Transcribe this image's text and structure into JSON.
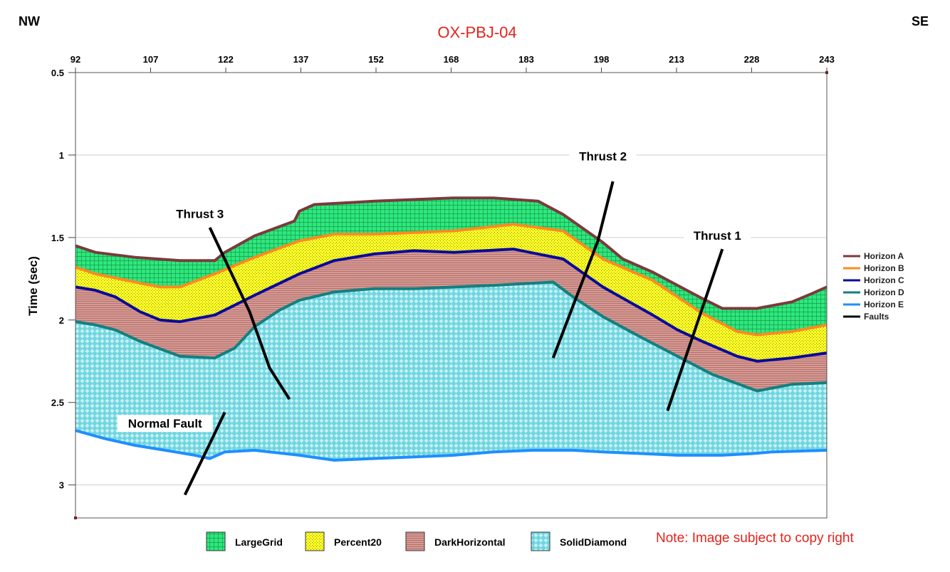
{
  "corners": {
    "left": "NW",
    "right": "SE"
  },
  "note": "Note: Image subject to copy right",
  "chart_data": {
    "type": "area",
    "title": "OX-PBJ-04",
    "ylabel": "Time (sec)",
    "xlabel": "",
    "xlim": [
      92,
      243
    ],
    "ylim": [
      0.5,
      3.2
    ],
    "x_ticks": [
      "92",
      "107",
      "122",
      "137",
      "152",
      "168",
      "183",
      "198",
      "213",
      "228",
      "243"
    ],
    "y_ticks": [
      0.5,
      1,
      1.5,
      2,
      2.5,
      3
    ],
    "y_tick_labels": [
      "0.5",
      "1",
      "1.5",
      "2",
      "2.5",
      "3"
    ],
    "grid": true,
    "colors": {
      "title": "#e3231b",
      "horizon_a": "#7a3b3b",
      "horizon_b": "#ff8a1f",
      "horizon_c": "#0a0a9a",
      "horizon_d": "#138080",
      "horizon_e": "#1e8fff",
      "faults": "#000000",
      "fill_grid": "#2ee87c",
      "fill_percent": "#ffff2a",
      "fill_darkhorizontal": "#d39a94",
      "fill_soliddiamond": "#6fd6e0"
    },
    "series": [
      {
        "name": "Horizon A",
        "key": "horizon_a",
        "x": [
          92,
          96,
          104,
          113,
          120,
          122,
          128,
          136,
          137,
          140,
          152,
          168,
          176,
          185,
          190,
          198,
          202,
          208,
          213,
          218,
          222,
          229,
          236,
          240,
          243
        ],
        "values": [
          1.55,
          1.59,
          1.62,
          1.64,
          1.64,
          1.59,
          1.49,
          1.4,
          1.34,
          1.3,
          1.28,
          1.26,
          1.26,
          1.28,
          1.36,
          1.53,
          1.63,
          1.71,
          1.79,
          1.87,
          1.93,
          1.93,
          1.89,
          1.84,
          1.8
        ]
      },
      {
        "name": "Horizon B",
        "key": "horizon_b",
        "x": [
          92,
          96,
          104,
          109,
          113,
          120,
          128,
          137,
          144,
          152,
          160,
          168,
          180,
          190,
          198,
          208,
          213,
          218,
          225,
          229,
          236,
          243
        ],
        "values": [
          1.68,
          1.72,
          1.77,
          1.8,
          1.8,
          1.72,
          1.62,
          1.52,
          1.48,
          1.48,
          1.47,
          1.46,
          1.42,
          1.46,
          1.63,
          1.76,
          1.86,
          1.96,
          2.07,
          2.09,
          2.07,
          2.03
        ]
      },
      {
        "name": "Horizon C",
        "key": "horizon_c",
        "x": [
          92,
          96,
          100,
          105,
          109,
          113,
          120,
          128,
          137,
          144,
          152,
          160,
          168,
          180,
          190,
          198,
          208,
          213,
          218,
          225,
          229,
          236,
          243
        ],
        "values": [
          1.8,
          1.82,
          1.86,
          1.95,
          2.0,
          2.01,
          1.97,
          1.85,
          1.72,
          1.64,
          1.6,
          1.58,
          1.59,
          1.57,
          1.63,
          1.8,
          1.97,
          2.06,
          2.13,
          2.22,
          2.25,
          2.23,
          2.2
        ]
      },
      {
        "name": "Horizon D",
        "key": "horizon_d",
        "x": [
          92,
          96,
          100,
          105,
          113,
          120,
          124,
          128,
          133,
          137,
          144,
          152,
          160,
          168,
          176,
          182,
          188,
          192,
          198,
          206,
          213,
          220,
          229,
          236,
          243
        ],
        "values": [
          2.01,
          2.03,
          2.06,
          2.13,
          2.22,
          2.23,
          2.17,
          2.04,
          1.94,
          1.88,
          1.83,
          1.81,
          1.81,
          1.8,
          1.79,
          1.78,
          1.77,
          1.86,
          1.98,
          2.11,
          2.22,
          2.33,
          2.43,
          2.39,
          2.38
        ]
      },
      {
        "name": "Horizon E",
        "key": "horizon_e",
        "x": [
          92,
          98,
          104,
          110,
          116,
          119,
          122,
          128,
          137,
          144,
          152,
          160,
          168,
          176,
          184,
          192,
          198,
          206,
          213,
          222,
          228,
          232,
          243
        ],
        "values": [
          2.67,
          2.72,
          2.76,
          2.79,
          2.82,
          2.84,
          2.8,
          2.79,
          2.82,
          2.85,
          2.84,
          2.83,
          2.82,
          2.8,
          2.79,
          2.79,
          2.8,
          2.81,
          2.82,
          2.82,
          2.81,
          2.8,
          2.79
        ]
      }
    ],
    "fills": [
      {
        "name": "LargeGrid",
        "between": [
          "horizon_a",
          "horizon_b"
        ],
        "color_key": "fill_grid"
      },
      {
        "name": "Percent20",
        "between": [
          "horizon_b",
          "horizon_c"
        ],
        "color_key": "fill_percent"
      },
      {
        "name": "DarkHorizontal",
        "between": [
          "horizon_c",
          "horizon_d"
        ],
        "color_key": "fill_darkhorizontal"
      },
      {
        "name": "SolidDiamond",
        "between": [
          "horizon_d",
          "horizon_e"
        ],
        "color_key": "fill_soliddiamond"
      }
    ],
    "faults": [
      {
        "label": "Thrust 3",
        "x": [
          119,
          127,
          131,
          135
        ],
        "values": [
          1.44,
          1.95,
          2.29,
          2.48
        ]
      },
      {
        "label": "Thrust 2",
        "x": [
          200,
          197,
          188
        ],
        "values": [
          1.16,
          1.52,
          2.23
        ]
      },
      {
        "label": "Thrust 1",
        "x": [
          222,
          211
        ],
        "values": [
          1.57,
          2.55
        ]
      },
      {
        "label": "Normal Fault",
        "x": [
          122,
          119,
          114
        ],
        "values": [
          2.56,
          2.75,
          3.06
        ]
      }
    ],
    "fault_labels": [
      {
        "text": "Thrust 3",
        "x": 117,
        "value": 1.37
      },
      {
        "text": "Thrust 2",
        "x": 198,
        "value": 1.02
      },
      {
        "text": "Thrust 1",
        "x": 221,
        "value": 1.5
      },
      {
        "text": "Normal Fault",
        "x": 110,
        "value": 2.64
      }
    ],
    "legend": [
      "Horizon A",
      "Horizon B",
      "Horizon C",
      "Horizon D",
      "Horizon E",
      "Faults"
    ],
    "legend_placement": "right",
    "fill_legend": [
      "LargeGrid",
      "Percent20",
      "DarkHorizontal",
      "SolidDiamond"
    ],
    "fill_legend_placement": "bottom"
  }
}
